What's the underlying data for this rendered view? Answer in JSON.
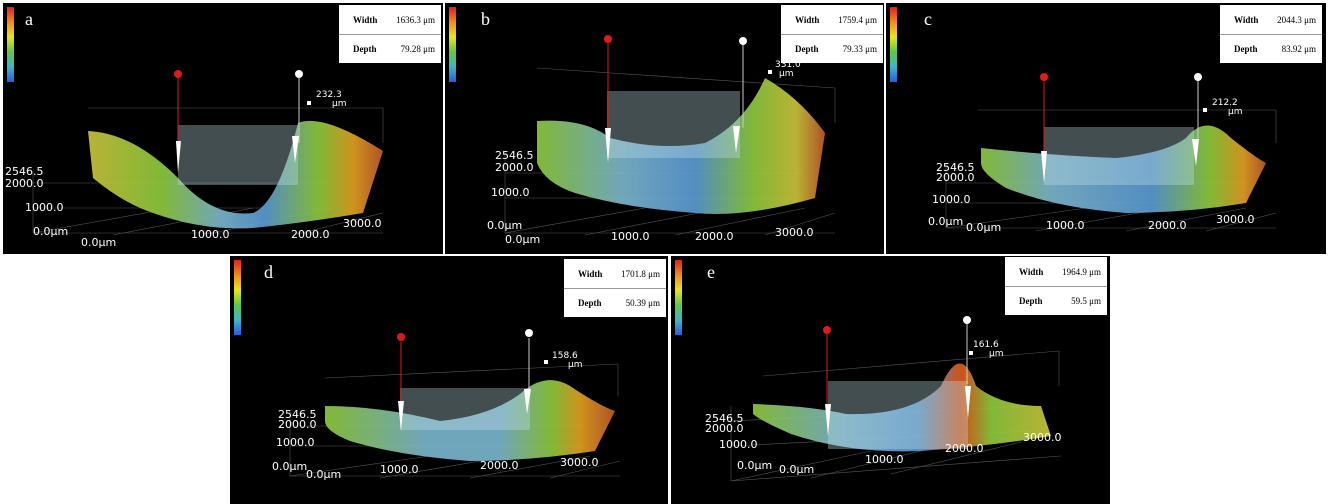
{
  "panels": [
    {
      "letter": "a",
      "width_label": "Width",
      "width_value": "1636.3 μm",
      "depth_label": "Depth",
      "depth_value": "79.28 μm",
      "height_marker": "232.3",
      "height_unit": "μm",
      "z_top": "2546.5",
      "z_mid1": "2000.0",
      "z_mid2": "1000.0",
      "z_origin": "0.0μm",
      "x_origin": "0.0μm",
      "x_tick1": "1000.0",
      "x_tick2": "2000.0",
      "x_tick3": "3000.0"
    },
    {
      "letter": "b",
      "width_label": "Width",
      "width_value": "1759.4 μm",
      "depth_label": "Depth",
      "depth_value": "79.33 μm",
      "height_marker": "331.0",
      "height_unit": "μm",
      "z_top": "2546.5",
      "z_mid1": "2000.0",
      "z_mid2": "1000.0",
      "z_origin": "0.0μm",
      "x_origin": "0.0μm",
      "x_tick1": "1000.0",
      "x_tick2": "2000.0",
      "x_tick3": "3000.0"
    },
    {
      "letter": "c",
      "width_label": "Width",
      "width_value": "2044.3 μm",
      "depth_label": "Depth",
      "depth_value": "83.92 μm",
      "height_marker": "212.2",
      "height_unit": "μm",
      "z_top": "2546.5",
      "z_mid1": "2000.0",
      "z_mid2": "1000.0",
      "z_origin": "0.0μm",
      "x_origin": "0.0μm",
      "x_tick1": "1000.0",
      "x_tick2": "2000.0",
      "x_tick3": "3000.0"
    },
    {
      "letter": "d",
      "width_label": "Width",
      "width_value": "1701.8 μm",
      "depth_label": "Depth",
      "depth_value": "50.39 μm",
      "height_marker": "158.6",
      "height_unit": "μm",
      "z_top": "2546.5",
      "z_mid1": "2000.0",
      "z_mid2": "1000.0",
      "z_origin": "0.0μm",
      "x_origin": "0.0μm",
      "x_tick1": "1000.0",
      "x_tick2": "2000.0",
      "x_tick3": "3000.0"
    },
    {
      "letter": "e",
      "width_label": "Width",
      "width_value": "1964.9 μm",
      "depth_label": "Depth",
      "depth_value": "59.5 μm",
      "height_marker": "161.6",
      "height_unit": "μm",
      "z_top": "2546.5",
      "z_mid1": "2000.0",
      "z_mid2": "1000.0",
      "z_origin": "0.0μm",
      "x_origin": "0.0μm",
      "x_tick1": "1000.0",
      "x_tick2": "2000.0",
      "x_tick3": "3000.0"
    }
  ],
  "colors": {
    "background": "#000000",
    "surface_high": "#e05a1a",
    "surface_mid": "#8cc83c",
    "surface_low": "#5a9ad2",
    "marker_left": "#e01a1a",
    "marker_right": "#ffffff"
  },
  "icons": {
    "colorbar": "height-colorbar",
    "pin_left": "red-pin-icon",
    "pin_right": "white-pin-icon"
  }
}
